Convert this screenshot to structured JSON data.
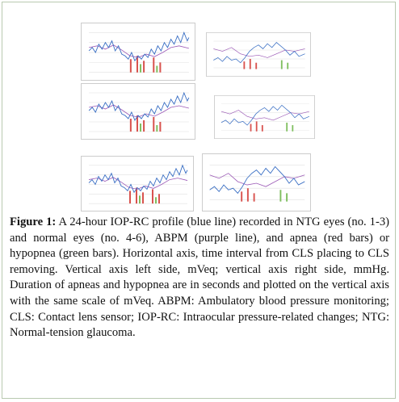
{
  "figure": {
    "label": "Figure 1:",
    "caption": "A 24-hour IOP-RC profile (blue line) recorded in NTG eyes (no. 1-3) and normal eyes (no. 4-6), ABPM (purple line), and apnea (red bars) or hypopnea (green bars). Horizontal axis, time interval from CLS placing to CLS removing. Vertical axis left side, mVeq; vertical axis right side, mmHg. Duration of apneas and hypopnea are in seconds and plotted on the vertical axis with the same scale of mVeq. ABPM: Ambulatory blood pressure monitoring; CLS: Contact lens sensor; IOP-RC: Intraocular pressure-related changes; NTG: Normal-tension glaucoma."
  }
}
